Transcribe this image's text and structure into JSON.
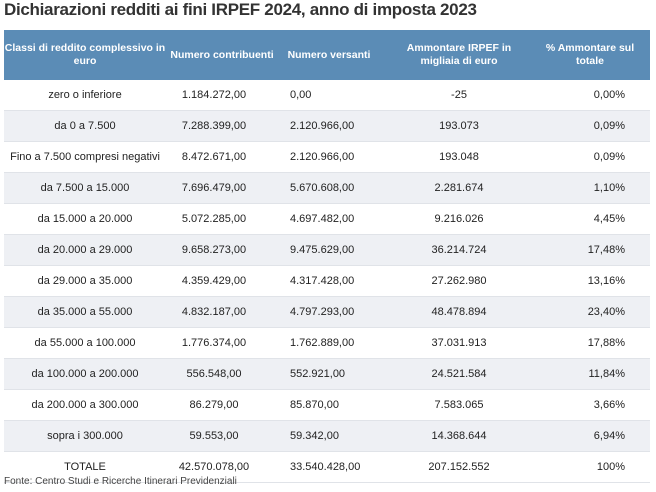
{
  "title": "Dichiarazioni redditi ai fini IRPEF 2024, anno di imposta 2023",
  "table": {
    "header": [
      "Classi di reddito complessivo in euro",
      "Numero contribuenti",
      "Numero versanti",
      "Ammontare IRPEF in migliaia di euro",
      "% Ammontare sul totale"
    ],
    "rows": [
      [
        "zero o inferiore",
        "1.184.272,00",
        "0,00",
        "-25",
        "0,00%"
      ],
      [
        "da 0 a 7.500",
        "7.288.399,00",
        "2.120.966,00",
        "193.073",
        "0,09%"
      ],
      [
        "Fino a 7.500 compresi negativi",
        "8.472.671,00",
        "2.120.966,00",
        "193.048",
        "0,09%"
      ],
      [
        "da 7.500 a 15.000",
        "7.696.479,00",
        "5.670.608,00",
        "2.281.674",
        "1,10%"
      ],
      [
        "da 15.000 a 20.000",
        "5.072.285,00",
        "4.697.482,00",
        "9.216.026",
        "4,45%"
      ],
      [
        "da 20.000 a 29.000",
        "9.658.273,00",
        "9.475.629,00",
        "36.214.724",
        "17,48%"
      ],
      [
        "da 29.000 a 35.000",
        "4.359.429,00",
        "4.317.428,00",
        "27.262.980",
        "13,16%"
      ],
      [
        "da 35.000 a 55.000",
        "4.832.187,00",
        "4.797.293,00",
        "48.478.894",
        "23,40%"
      ],
      [
        "da 55.000 a 100.000",
        "1.776.374,00",
        "1.762.889,00",
        "37.031.913",
        "17,88%"
      ],
      [
        "da 100.000 a 200.000",
        "556.548,00",
        "552.921,00",
        "24.521.584",
        "11,84%"
      ],
      [
        "da 200.000 a 300.000",
        "86.279,00",
        "85.870,00",
        "7.583.065",
        "3,66%"
      ],
      [
        "sopra i 300.000",
        "59.553,00",
        "59.342,00",
        "14.368.644",
        "6,94%"
      ],
      [
        "TOTALE",
        "42.570.078,00",
        "33.540.428,00",
        "207.152.552",
        "100%"
      ]
    ]
  },
  "source": "Fonte: Centro Studi e Ricerche Itinerari Previdenziali"
}
